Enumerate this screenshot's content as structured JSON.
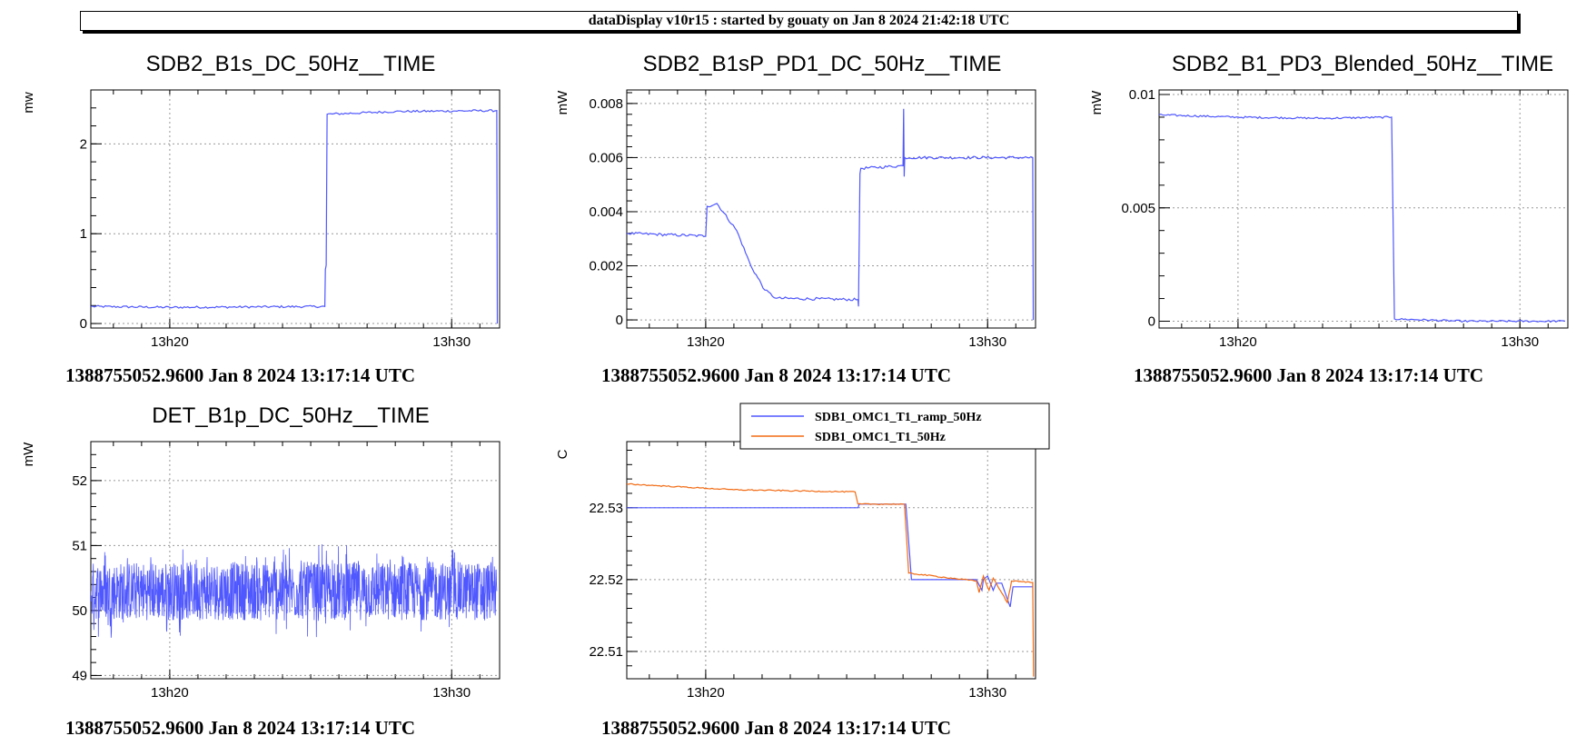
{
  "banner": "dataDisplay v10r15 : started by gouaty on Jan  8 2024 21:42:18 UTC",
  "colors": {
    "blue": "#4f57ff",
    "orange": "#f26b14",
    "grid": "#999999"
  },
  "chart_data": [
    {
      "type": "line",
      "title": "SDB2_B1s_DC_50Hz__TIME",
      "ylabel": "mw",
      "footer": "1388755052.9600 Jan 8 2024 13:17:14 UTC",
      "xlim": [
        17.2,
        31.7
      ],
      "x_ticks": [
        {
          "v": 20,
          "label": "13h20"
        },
        {
          "v": 30,
          "label": "13h30"
        }
      ],
      "ylim": [
        -0.05,
        2.6
      ],
      "y_ticks": [
        {
          "v": 0,
          "label": "0"
        },
        {
          "v": 1,
          "label": "1"
        },
        {
          "v": 2,
          "label": "2"
        }
      ],
      "series": [
        {
          "color": "blue",
          "noise": 0.012,
          "points": [
            [
              17.2,
              0.19
            ],
            [
              20,
              0.18
            ],
            [
              23,
              0.185
            ],
            [
              25.5,
              0.19
            ],
            [
              25.52,
              0.6
            ],
            [
              25.55,
              0.65
            ],
            [
              25.58,
              2.33
            ],
            [
              28,
              2.36
            ],
            [
              31.6,
              2.37
            ],
            [
              31.62,
              0.0
            ]
          ]
        }
      ]
    },
    {
      "type": "line",
      "title": "SDB2_B1sP_PD1_DC_50Hz__TIME",
      "ylabel": "mW",
      "footer": "1388755052.9600 Jan 8 2024 13:17:14 UTC",
      "xlim": [
        17.2,
        31.7
      ],
      "x_ticks": [
        {
          "v": 20,
          "label": "13h20"
        },
        {
          "v": 30,
          "label": "13h30"
        }
      ],
      "ylim": [
        -0.0003,
        0.0085
      ],
      "y_ticks": [
        {
          "v": 0,
          "label": "0"
        },
        {
          "v": 0.002,
          "label": "0.002"
        },
        {
          "v": 0.004,
          "label": "0.004"
        },
        {
          "v": 0.006,
          "label": "0.006"
        },
        {
          "v": 0.008,
          "label": "0.008"
        }
      ],
      "series": [
        {
          "color": "blue",
          "noise": 5e-05,
          "points": [
            [
              17.2,
              0.0032
            ],
            [
              20,
              0.0031
            ],
            [
              20.05,
              0.0042
            ],
            [
              20.4,
              0.0043
            ],
            [
              21.1,
              0.0033
            ],
            [
              21.6,
              0.002
            ],
            [
              22.1,
              0.0011
            ],
            [
              22.5,
              0.0008
            ],
            [
              25.4,
              0.00075
            ],
            [
              25.42,
              0.0005
            ],
            [
              25.47,
              0.0054
            ],
            [
              25.5,
              0.0056
            ],
            [
              27.0,
              0.0057
            ],
            [
              27.02,
              0.0078
            ],
            [
              27.04,
              0.0053
            ],
            [
              27.06,
              0.006
            ],
            [
              29,
              0.006
            ],
            [
              31.6,
              0.006
            ],
            [
              31.62,
              0.0
            ]
          ]
        }
      ]
    },
    {
      "type": "line",
      "title": "SDB2_B1_PD3_Blended_50Hz__TIME",
      "ylabel": "mW",
      "footer": "1388755052.9600 Jan 8 2024 13:17:14 UTC",
      "xlim": [
        17.2,
        31.7
      ],
      "x_ticks": [
        {
          "v": 20,
          "label": "13h20"
        },
        {
          "v": 30,
          "label": "13h30"
        }
      ],
      "ylim": [
        -0.0003,
        0.0102
      ],
      "y_ticks": [
        {
          "v": 0,
          "label": "0"
        },
        {
          "v": 0.005,
          "label": "0.005"
        },
        {
          "v": 0.01,
          "label": "0.01"
        }
      ],
      "series": [
        {
          "color": "blue",
          "noise": 4e-05,
          "points": [
            [
              17.2,
              0.0091
            ],
            [
              20,
              0.009
            ],
            [
              23,
              0.00895
            ],
            [
              25.45,
              0.009
            ],
            [
              25.55,
              0.0001
            ],
            [
              28,
              0.0
            ],
            [
              31.6,
              0.0
            ]
          ]
        }
      ]
    },
    {
      "type": "line",
      "title": "DET_B1p_DC_50Hz__TIME",
      "ylabel": "mW",
      "footer": "1388755052.9600 Jan 8 2024 13:17:14 UTC",
      "xlim": [
        17.2,
        31.7
      ],
      "x_ticks": [
        {
          "v": 20,
          "label": "13h20"
        },
        {
          "v": 30,
          "label": "13h30"
        }
      ],
      "ylim": [
        48.95,
        52.6
      ],
      "y_ticks": [
        {
          "v": 49,
          "label": "49"
        },
        {
          "v": 50,
          "label": "50"
        },
        {
          "v": 51,
          "label": "51"
        },
        {
          "v": 52,
          "label": "52"
        }
      ],
      "series": [
        {
          "color": "blue",
          "noise": 0.3,
          "points": [
            [
              17.2,
              50.3
            ],
            [
              31.6,
              50.3
            ]
          ]
        }
      ]
    },
    {
      "type": "line",
      "title": "",
      "ylabel": "C",
      "footer": "1388755052.9600 Jan 8 2024 13:17:14 UTC",
      "xlim": [
        17.2,
        31.7
      ],
      "x_ticks": [
        {
          "v": 20,
          "label": "13h20"
        },
        {
          "v": 30,
          "label": "13h30"
        }
      ],
      "ylim": [
        22.5062,
        22.5392
      ],
      "y_ticks": [
        {
          "v": 22.51,
          "label": "22.51"
        },
        {
          "v": 22.52,
          "label": "22.52"
        },
        {
          "v": 22.53,
          "label": "22.53"
        }
      ],
      "legend": "top",
      "series": [
        {
          "name": "SDB1_OMC1_T1_ramp_50Hz",
          "color": "blue",
          "noise": 0,
          "points": [
            [
              17.2,
              22.53
            ],
            [
              25.4,
              22.53
            ],
            [
              25.45,
              22.5305
            ],
            [
              27.1,
              22.5305
            ],
            [
              27.3,
              22.52
            ],
            [
              29.6,
              22.52
            ],
            [
              29.8,
              22.5185
            ],
            [
              29.85,
              22.52
            ],
            [
              30.0,
              22.5205
            ],
            [
              30.2,
              22.5185
            ],
            [
              30.3,
              22.5195
            ],
            [
              30.5,
              22.5195
            ],
            [
              30.8,
              22.5162
            ],
            [
              30.9,
              22.519
            ],
            [
              31.6,
              22.519
            ]
          ]
        },
        {
          "name": "SDB1_OMC1_T1_50Hz",
          "color": "orange",
          "noise": 8e-05,
          "points": [
            [
              17.2,
              22.5333
            ],
            [
              21,
              22.5325
            ],
            [
              25.3,
              22.5322
            ],
            [
              25.4,
              22.5305
            ],
            [
              27.05,
              22.5305
            ],
            [
              27.2,
              22.5209
            ],
            [
              28.5,
              22.5203
            ],
            [
              29.6,
              22.5198
            ],
            [
              29.7,
              22.5182
            ],
            [
              29.85,
              22.5205
            ],
            [
              30.05,
              22.5185
            ],
            [
              30.2,
              22.5202
            ],
            [
              30.7,
              22.5168
            ],
            [
              30.85,
              22.5198
            ],
            [
              31.6,
              22.5196
            ],
            [
              31.63,
              22.5065
            ]
          ]
        }
      ]
    }
  ]
}
